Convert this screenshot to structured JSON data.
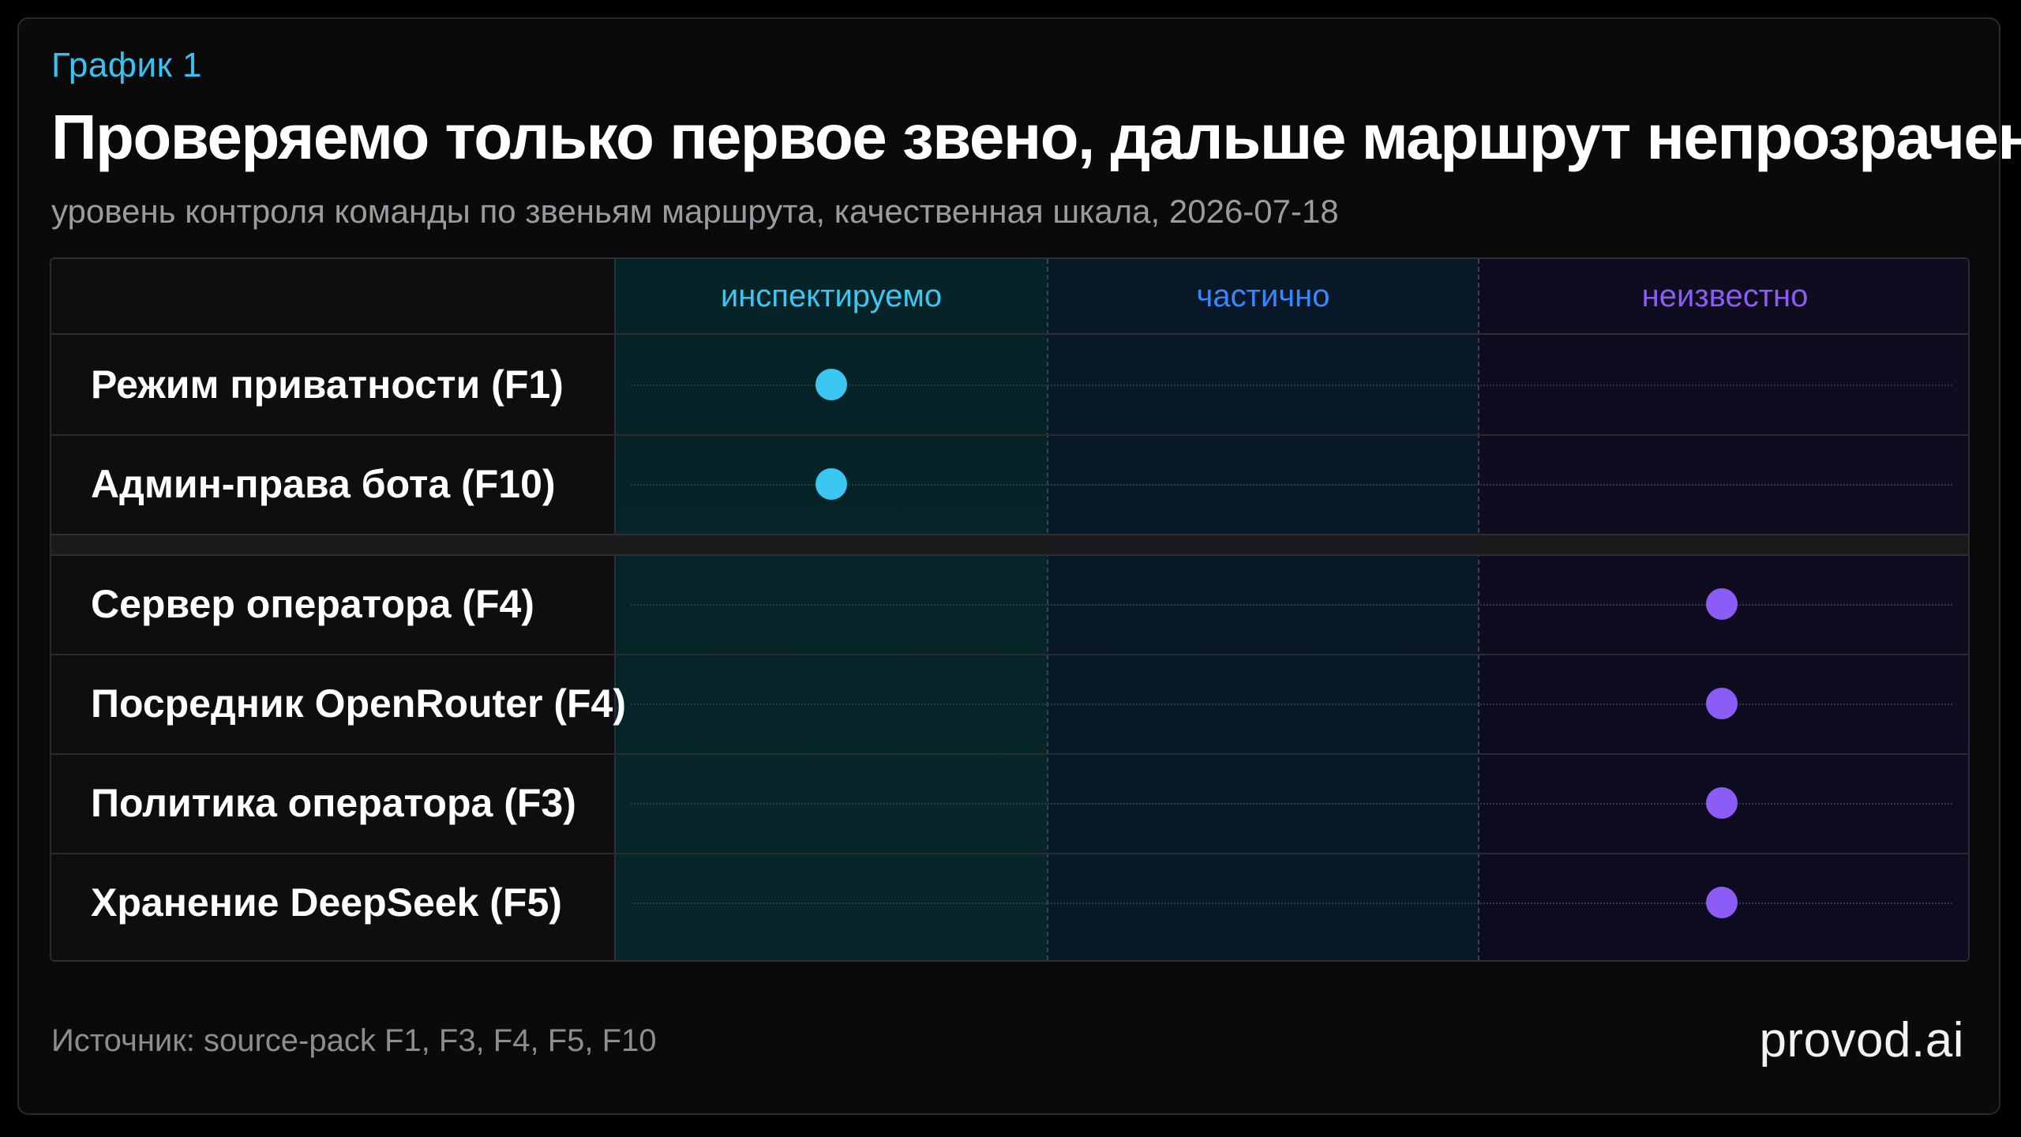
{
  "kicker": "График 1",
  "title": "Проверяемо только первое звено, дальше маршрут непрозрачен",
  "subtitle": "уровень контроля команды по звеньям маршрута, качественная шкала, 2026-07-18",
  "footer": {
    "source": "Источник: source-pack F1, F3, F4, F5, F10",
    "brand": "provod.ai"
  },
  "colors": {
    "inspectable": "#3cc6f2",
    "partial": "#3a86ff",
    "unknown": "#8b5cf6"
  },
  "chart_data": {
    "type": "table",
    "columns": [
      "инспектируемо",
      "частично",
      "неизвестно"
    ],
    "groups": [
      {
        "rows": [
          {
            "label": "Режим приватности (F1)",
            "level": "инспектируемо"
          },
          {
            "label": "Админ-права бота (F10)",
            "level": "инспектируемо"
          }
        ]
      },
      {
        "rows": [
          {
            "label": "Сервер оператора (F4)",
            "level": "неизвестно"
          },
          {
            "label": "Посредник OpenRouter (F4)",
            "level": "неизвестно"
          },
          {
            "label": "Политика оператора (F3)",
            "level": "неизвестно"
          },
          {
            "label": "Хранение DeepSeek (F5)",
            "level": "неизвестно"
          }
        ]
      }
    ]
  }
}
